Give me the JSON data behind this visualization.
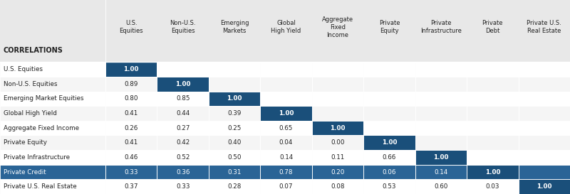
{
  "row_labels": [
    "U.S. Equities",
    "Non-U.S. Equities",
    "Emerging Market Equities",
    "Global High Yield",
    "Aggregate Fixed Income",
    "Private Equity",
    "Private Infrastructure",
    "Private Credit",
    "Private U.S. Real Estate"
  ],
  "col_labels": [
    "U.S.\nEquities",
    "Non-U.S.\nEquities",
    "Emerging\nMarkets",
    "Global\nHigh Yield",
    "Aggregate\nFixed\nIncome",
    "Private\nEquity",
    "Private\nInfrastructure",
    "Private\nDebt",
    "Private U.S.\nReal Estate"
  ],
  "matrix": [
    [
      1.0,
      null,
      null,
      null,
      null,
      null,
      null,
      null,
      null
    ],
    [
      0.89,
      1.0,
      null,
      null,
      null,
      null,
      null,
      null,
      null
    ],
    [
      0.8,
      0.85,
      1.0,
      null,
      null,
      null,
      null,
      null,
      null
    ],
    [
      0.41,
      0.44,
      0.39,
      1.0,
      null,
      null,
      null,
      null,
      null
    ],
    [
      0.26,
      0.27,
      0.25,
      0.65,
      1.0,
      null,
      null,
      null,
      null
    ],
    [
      0.41,
      0.42,
      0.4,
      0.04,
      0.0,
      1.0,
      null,
      null,
      null
    ],
    [
      0.46,
      0.52,
      0.5,
      0.14,
      0.11,
      0.66,
      1.0,
      null,
      null
    ],
    [
      0.33,
      0.36,
      0.31,
      0.78,
      0.2,
      0.06,
      0.14,
      1.0,
      null
    ],
    [
      0.37,
      0.33,
      0.28,
      0.07,
      0.08,
      0.53,
      0.6,
      0.03,
      1.0
    ]
  ],
  "highlight_row": 7,
  "dark_blue": "#1a4f7a",
  "medium_blue": "#2a6496",
  "light_gray_bg": "#f0f0f0",
  "header_bg": "#e8e8e8",
  "row_even_bg": "#ffffff",
  "row_odd_bg": "#f5f5f5",
  "white": "#ffffff",
  "text_dark": "#222222",
  "text_white": "#ffffff",
  "title": "CORRELATIONS",
  "figsize": [
    8.0,
    2.73
  ],
  "dpi": 100
}
